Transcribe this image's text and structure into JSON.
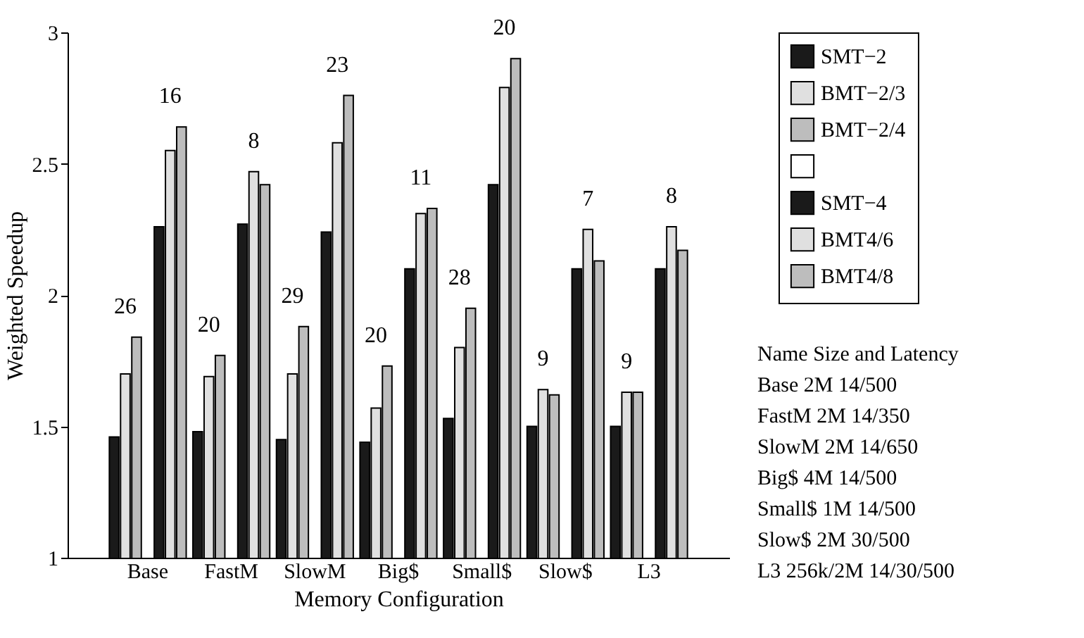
{
  "chart_data": {
    "type": "bar",
    "xlabel": "Memory Configuration",
    "ylabel": "Weighted Speedup",
    "categories": [
      "Base",
      "FastM",
      "SlowM",
      "Big$",
      "Small$",
      "Slow$",
      "L3"
    ],
    "series": [
      {
        "name": "SMT−2",
        "color": "#1a1a1a",
        "values": [
          1.46,
          1.48,
          1.45,
          1.44,
          1.53,
          1.5,
          1.5
        ]
      },
      {
        "name": "BMT−2/3",
        "color": "#e0e0e0",
        "values": [
          1.7,
          1.69,
          1.7,
          1.57,
          1.8,
          1.64,
          1.63
        ]
      },
      {
        "name": "BMT−2/4",
        "color": "#bdbdbd",
        "values": [
          1.84,
          1.77,
          1.88,
          1.73,
          1.95,
          1.62,
          1.63
        ]
      },
      {
        "color": "#ffffff",
        "values": [
          null,
          null,
          null,
          null,
          null,
          null,
          null
        ]
      },
      {
        "name": "SMT−4",
        "color": "#1a1a1a",
        "values": [
          2.26,
          2.27,
          2.24,
          2.1,
          2.42,
          2.1,
          2.1
        ]
      },
      {
        "name": "BMT4/6",
        "color": "#e0e0e0",
        "values": [
          2.55,
          2.47,
          2.58,
          2.31,
          2.79,
          2.25,
          2.26
        ]
      },
      {
        "name": "BMT4/8",
        "color": "#bdbdbd",
        "values": [
          2.64,
          2.42,
          2.76,
          2.33,
          2.9,
          2.13,
          2.17
        ]
      }
    ],
    "ylim": [
      1,
      3
    ],
    "yticks": [
      1,
      1.5,
      2,
      2.5,
      3
    ],
    "grid": false,
    "legend": "right",
    "annotations": [
      "26",
      "16",
      "20",
      "8",
      "29",
      "23",
      "20",
      "11",
      "28",
      "20",
      "9",
      "7",
      "9",
      "8",
      "Name Size and Latency",
      "Base 2M 14/500",
      "FastM 2M 14/350",
      "SlowM 2M 14/650",
      "Big$ 4M 14/500",
      "Small$ 1M 14/500",
      "Slow$ 2M 30/500",
      "L3 256k/2M 14/30/500"
    ]
  }
}
